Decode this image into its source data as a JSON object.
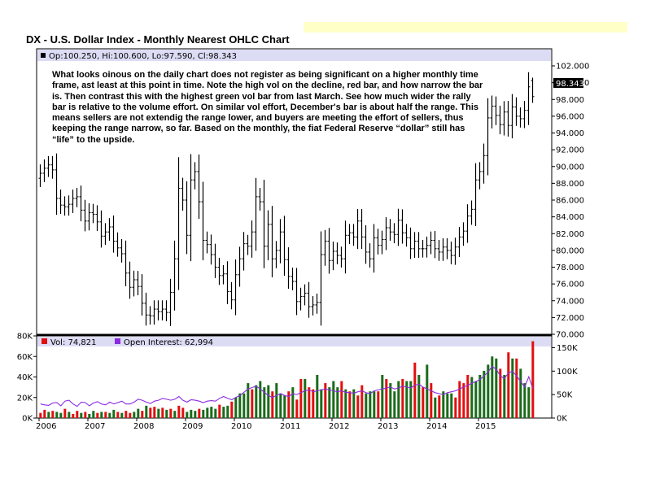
{
  "title": "DX - U.S. Dollar Index - Monthly Nearest OHLC Chart",
  "commentary": "What looks oinous on the daily chart does not register as being significant on a higher monthly time frame, ast least at this point in time.  Note the high vol on the decline, red bar, and how narrow the bar is.  Then contrast this with the highest green vol bar from last March.  See how much wider the rally bar is relative to the volume effort.  On similar vol effort, December's bar is about half the range.  This means sellers are not extendig the range lower, and buyers are meeting the effort of sellers, thus keeping the range narrow, so far.  Based on the monthly, the fiat Federal Reserve “dollar” still has “life” to the upside.",
  "price_legend": "Op:100.250, Hi:100.600, Lo:97.590, Cl:98.343",
  "last_price_label": "98.343",
  "volume_legend": "Vol: 74,821",
  "oi_legend": "Open Interest: 62,994",
  "colors": {
    "up_bar": "#1a6b1a",
    "down_bar": "#e01010",
    "oi_line": "#8a2be2",
    "legend_bg": "#dcdcf5",
    "banner": "#ffffc8",
    "price_bar": "#000000"
  },
  "chart_data": [
    {
      "type": "ohlc",
      "title": "DX - U.S. Dollar Index - Monthly Nearest OHLC Chart",
      "x_tick_labels": [
        "2006",
        "2007",
        "2008",
        "2009",
        "2010",
        "2011",
        "2012",
        "2013",
        "2014",
        "2015"
      ],
      "y_tick_labels": [
        "70.000",
        "72.000",
        "74.000",
        "76.000",
        "78.000",
        "80.000",
        "82.000",
        "84.000",
        "86.000",
        "88.000",
        "90.000",
        "92.000",
        "94.000",
        "96.000",
        "98.000",
        "100.000",
        "102.000"
      ],
      "ylim": [
        70,
        102
      ],
      "last_bar": {
        "open": 100.25,
        "high": 100.6,
        "low": 97.59,
        "close": 98.343
      },
      "closes": [
        89.2,
        89.8,
        90.2,
        89.6,
        86.2,
        85.4,
        85.2,
        85.5,
        86.2,
        86.4,
        84.8,
        83.5,
        84.5,
        84.3,
        83.4,
        81.7,
        82.2,
        82.8,
        81.1,
        80.3,
        79.6,
        77.3,
        75.6,
        76.5,
        75.7,
        73.7,
        72.3,
        72.2,
        73.0,
        72.7,
        73.0,
        72.6,
        75.0,
        79.0,
        87.4,
        86.0,
        81.8,
        88.4,
        89.4,
        85.8,
        81.2,
        80.7,
        79.5,
        78.0,
        77.0,
        77.2,
        75.1,
        74.1,
        77.1,
        79.0,
        80.8,
        80.5,
        82.2,
        86.4,
        85.8,
        80.5,
        83.1,
        79.0,
        80.0,
        82.2,
        78.9,
        76.9,
        76.3,
        73.9,
        74.5,
        74.9,
        73.3,
        73.5,
        73.8,
        79.5,
        81.1,
        78.8,
        79.9,
        79.4,
        79.0,
        81.8,
        82.1,
        81.6,
        83.5,
        81.6,
        79.8,
        79.0,
        81.5,
        80.6,
        81.3,
        82.7,
        82.2,
        81.9,
        83.6,
        82.1,
        81.5,
        80.2,
        81.1,
        80.2,
        80.2,
        80.6,
        81.2,
        80.2,
        79.8,
        80.4,
        80.0,
        79.4,
        80.4,
        81.6,
        82.3,
        84.1,
        84.9,
        88.4,
        89.4,
        91.3,
        95.8,
        97.2,
        96.1,
        95.0,
        96.5,
        94.9,
        97.1,
        96.0,
        95.7,
        96.7,
        99.5,
        98.34
      ]
    },
    {
      "type": "bar",
      "title": "Volume",
      "y_tick_labels": [
        "0K",
        "20K",
        "40K",
        "60K",
        "80K"
      ],
      "ylim": [
        0,
        80000
      ],
      "last_value": 74821,
      "values": [
        5000,
        8000,
        6000,
        7000,
        6000,
        5000,
        9000,
        6000,
        4000,
        7000,
        5000,
        6000,
        4000,
        7000,
        5000,
        6000,
        6000,
        5000,
        8000,
        6000,
        5000,
        7000,
        5000,
        6000,
        9000,
        7000,
        12000,
        10000,
        11000,
        9000,
        10000,
        8000,
        9000,
        7000,
        12000,
        10000,
        6000,
        8000,
        7000,
        9000,
        8000,
        10000,
        11000,
        9000,
        13000,
        11000,
        12000,
        16000,
        20000,
        24000,
        24000,
        34000,
        28000,
        32000,
        36000,
        30000,
        32000,
        26000,
        34000,
        24000,
        22000,
        26000,
        30000,
        18000,
        38000,
        38000,
        30000,
        28000,
        42000,
        28000,
        34000,
        30000,
        36000,
        30000,
        36000,
        28000,
        26000,
        28000,
        22000,
        32000,
        24000,
        26000,
        26000,
        26000,
        42000,
        38000,
        34000,
        26000,
        36000,
        38000,
        36000,
        36000,
        54000,
        42000,
        30000,
        52000,
        34000,
        20000,
        22000,
        26000,
        24000,
        24000,
        20000,
        36000,
        34000,
        42000,
        40000,
        36000,
        42000,
        46000,
        52000,
        60000,
        58000,
        48000,
        42000,
        64000,
        58000,
        58000,
        48000,
        34000,
        30000,
        74821
      ],
      "up_flags": [
        0,
        0,
        1,
        0,
        1,
        1,
        0,
        1,
        0,
        0,
        1,
        0,
        1,
        1,
        0,
        1,
        0,
        1,
        1,
        0,
        1,
        0,
        0,
        1,
        1,
        0,
        1,
        0,
        0,
        1,
        0,
        1,
        0,
        1,
        0,
        0,
        1,
        1,
        1,
        0,
        1,
        1,
        1,
        1,
        0,
        1,
        1,
        0,
        1,
        1,
        1,
        1,
        0,
        1,
        1,
        1,
        1,
        0,
        1,
        1,
        1,
        0,
        1,
        0,
        0,
        1,
        0,
        0,
        1,
        1,
        0,
        1,
        1,
        1,
        0,
        1,
        0,
        1,
        0,
        0,
        1,
        1,
        1,
        0,
        1,
        0,
        1,
        1,
        1,
        0,
        1,
        1,
        0,
        1,
        0,
        1,
        0,
        1,
        0,
        1,
        1,
        1,
        0,
        0,
        0,
        0,
        1,
        1,
        1,
        1,
        1,
        1,
        1,
        0,
        1,
        0,
        1,
        0,
        1,
        1,
        1,
        0
      ],
      "open_interest_series": {
        "name": "Open Interest",
        "y_tick_labels": [
          "0K",
          "50K",
          "100K",
          "150K"
        ],
        "ylim": [
          0,
          175000
        ],
        "last_value": 62994,
        "values": [
          30000,
          28000,
          27000,
          32000,
          33000,
          26000,
          36000,
          38000,
          30000,
          25000,
          34000,
          33000,
          26000,
          32000,
          35000,
          30000,
          28000,
          34000,
          30000,
          33000,
          36000,
          30000,
          30000,
          34000,
          40000,
          38000,
          34000,
          31000,
          36000,
          38000,
          42000,
          40000,
          38000,
          40000,
          46000,
          38000,
          34000,
          39000,
          38000,
          36000,
          33000,
          36000,
          37000,
          36000,
          42000,
          46000,
          42000,
          39000,
          44000,
          48000,
          55000,
          62000,
          65000,
          68000,
          62000,
          55000,
          48000,
          44000,
          48000,
          52000,
          48000,
          46000,
          52000,
          50000,
          54000,
          58000,
          60000,
          56000,
          58000,
          60000,
          62000,
          60000,
          58000,
          56000,
          58000,
          55000,
          54000,
          53000,
          56000,
          58000,
          54000,
          52000,
          58000,
          60000,
          62000,
          64000,
          66000,
          62000,
          64000,
          68000,
          66000,
          64000,
          70000,
          72000,
          66000,
          62000,
          58000,
          54000,
          52000,
          50000,
          54000,
          56000,
          58000,
          62000,
          66000,
          70000,
          74000,
          78000,
          82000,
          90000,
          98000,
          110000,
          104000,
          90000,
          84000,
          96000,
          100000,
          90000,
          78000,
          66000,
          88000,
          62994
        ]
      }
    }
  ]
}
